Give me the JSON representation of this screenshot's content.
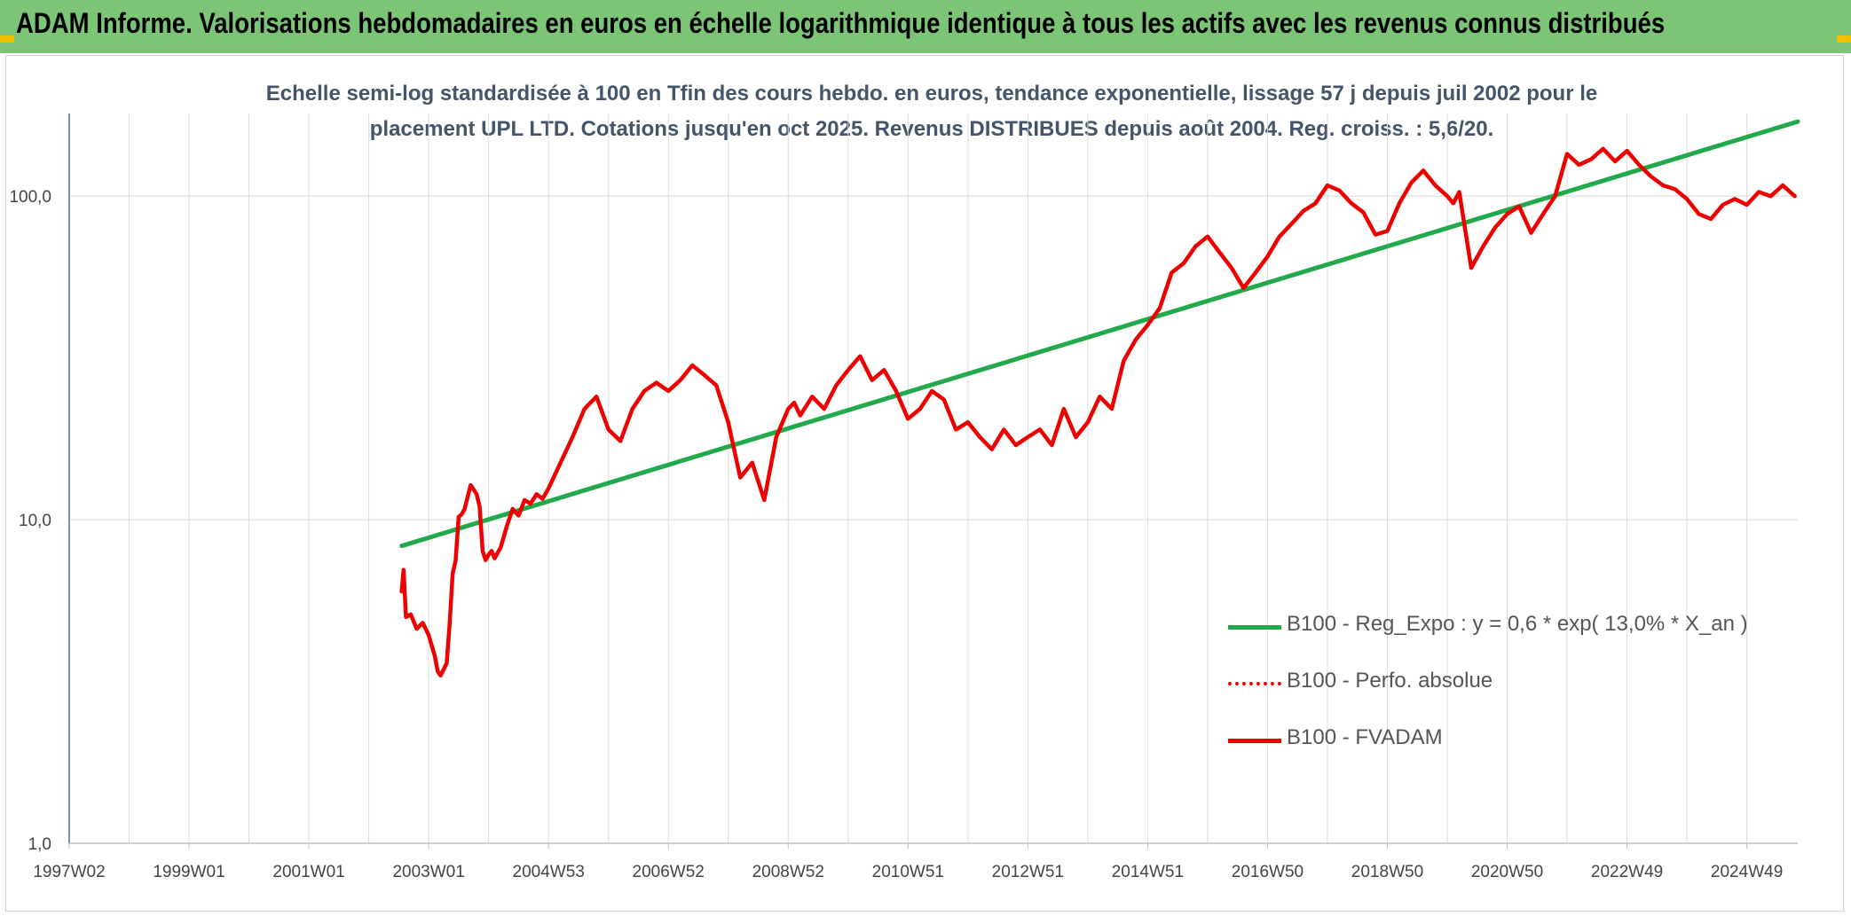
{
  "header": {
    "title": "ADAM Informe. Valorisations hebdomadaires en euros en échelle logarithmique identique à tous les actifs avec les revenus connus distribués"
  },
  "colors": {
    "header_bg": "#7cc576",
    "regression": "#22a94b",
    "fvadam": "#ee0000",
    "perfo": "#ee0000",
    "accent_corner": "#f2c200"
  },
  "chart_data": {
    "type": "line",
    "title": "Echelle semi-log standardisée à 100 en Tfin des cours hebdo. en euros, tendance exponentielle, lissage 57 j depuis juil 2002 pour le placement UPL LTD. Cotations jusqu'en oct 2025. Revenus DISTRIBUES depuis août 2004. Reg. croiss. : 5,6/20.",
    "xlabel": "",
    "ylabel": "",
    "y_scale": "log",
    "ylim": [
      1,
      180
    ],
    "xlim": [
      1997.0,
      2025.85
    ],
    "x_tick_labels": [
      "1997W02",
      "1999W01",
      "2001W01",
      "2003W01",
      "2004W53",
      "2006W52",
      "2008W52",
      "2010W51",
      "2012W51",
      "2014W51",
      "2016W50",
      "2018W50",
      "2020W50",
      "2022W49",
      "2024W49"
    ],
    "x_tick_values": [
      1997.0,
      1999.0,
      2001.0,
      2003.0,
      2005.0,
      2007.0,
      2009.0,
      2011.0,
      2013.0,
      2015.0,
      2017.0,
      2019.0,
      2021.0,
      2023.0,
      2025.0
    ],
    "y_tick_labels": [
      "1,0",
      "10,0",
      "100,0"
    ],
    "y_tick_values": [
      1,
      10,
      100
    ],
    "grid": true,
    "legend_position": "bottom-right",
    "series": [
      {
        "name": "B100 - Reg_Expo : y = 0,6 * exp( 13,0% *  X_an )",
        "style": "solid",
        "color": "#22a94b",
        "x": [
          2002.55,
          2025.85
        ],
        "y": [
          8.3,
          170
        ]
      },
      {
        "name": "B100 - Perfo. absolue",
        "style": "dotted",
        "color": "#ee0000",
        "x": [],
        "y": []
      },
      {
        "name": "B100 - FVADAM",
        "style": "solid",
        "color": "#ee0000",
        "x": [
          2002.55,
          2002.58,
          2002.62,
          2002.7,
          2002.8,
          2002.9,
          2003.0,
          2003.1,
          2003.15,
          2003.2,
          2003.3,
          2003.35,
          2003.4,
          2003.45,
          2003.5,
          2003.55,
          2003.6,
          2003.7,
          2003.8,
          2003.85,
          2003.9,
          2003.95,
          2004.0,
          2004.05,
          2004.1,
          2004.2,
          2004.3,
          2004.4,
          2004.5,
          2004.6,
          2004.7,
          2004.8,
          2004.9,
          2005.0,
          2005.2,
          2005.4,
          2005.6,
          2005.8,
          2006.0,
          2006.2,
          2006.4,
          2006.6,
          2006.8,
          2007.0,
          2007.2,
          2007.4,
          2007.6,
          2007.8,
          2008.0,
          2008.2,
          2008.4,
          2008.6,
          2008.8,
          2009.0,
          2009.1,
          2009.2,
          2009.4,
          2009.6,
          2009.8,
          2010.0,
          2010.2,
          2010.4,
          2010.6,
          2010.8,
          2011.0,
          2011.2,
          2011.4,
          2011.6,
          2011.8,
          2012.0,
          2012.2,
          2012.4,
          2012.6,
          2012.8,
          2013.0,
          2013.2,
          2013.4,
          2013.6,
          2013.8,
          2014.0,
          2014.2,
          2014.4,
          2014.6,
          2014.8,
          2015.0,
          2015.2,
          2015.4,
          2015.6,
          2015.8,
          2016.0,
          2016.2,
          2016.4,
          2016.6,
          2016.8,
          2017.0,
          2017.2,
          2017.4,
          2017.6,
          2017.8,
          2018.0,
          2018.2,
          2018.4,
          2018.6,
          2018.8,
          2019.0,
          2019.2,
          2019.4,
          2019.6,
          2019.8,
          2020.0,
          2020.1,
          2020.2,
          2020.4,
          2020.6,
          2020.8,
          2021.0,
          2021.2,
          2021.4,
          2021.6,
          2021.8,
          2022.0,
          2022.2,
          2022.4,
          2022.6,
          2022.8,
          2023.0,
          2023.2,
          2023.4,
          2023.6,
          2023.8,
          2024.0,
          2024.2,
          2024.4,
          2024.6,
          2024.8,
          2025.0,
          2025.2,
          2025.4,
          2025.6,
          2025.8
        ],
        "y": [
          6.0,
          7.0,
          5.0,
          5.1,
          4.6,
          4.8,
          4.4,
          3.8,
          3.4,
          3.3,
          3.6,
          4.8,
          6.8,
          7.5,
          10.2,
          10.4,
          10.8,
          12.8,
          12.0,
          11.0,
          8.0,
          7.5,
          7.8,
          8.0,
          7.6,
          8.2,
          9.5,
          10.8,
          10.3,
          11.5,
          11.2,
          12.0,
          11.6,
          12.5,
          15.0,
          18.0,
          22.0,
          24.0,
          19.0,
          17.5,
          22.0,
          25.0,
          26.5,
          25.0,
          27.0,
          30.0,
          28.0,
          26.0,
          20.0,
          13.5,
          15.0,
          11.5,
          18.0,
          22.0,
          23.0,
          21.0,
          24.0,
          22.0,
          26.0,
          29.0,
          32.0,
          27.0,
          29.0,
          25.0,
          20.5,
          22.0,
          25.0,
          23.5,
          19.0,
          20.0,
          18.0,
          16.5,
          19.0,
          17.0,
          18.0,
          19.0,
          17.0,
          22.0,
          18.0,
          20.0,
          24.0,
          22.0,
          31.0,
          36.0,
          40.0,
          45.0,
          58.0,
          62.0,
          70.0,
          75.0,
          67.0,
          60.0,
          52.0,
          58.0,
          65.0,
          75.0,
          82.0,
          90.0,
          95.0,
          108.0,
          104.0,
          95.0,
          89.0,
          76.0,
          78.0,
          95.0,
          110.0,
          120.0,
          108.0,
          100.0,
          95.0,
          103.0,
          60.0,
          70.0,
          80.0,
          88.0,
          93.0,
          77.0,
          88.0,
          100.0,
          135.0,
          125.0,
          130.0,
          140.0,
          128.0,
          138.0,
          125.0,
          115.0,
          108.0,
          105.0,
          98.0,
          88.0,
          85.0,
          94.0,
          98.0,
          94.0,
          103.0,
          100.0,
          108.0,
          100.0
        ]
      }
    ]
  }
}
